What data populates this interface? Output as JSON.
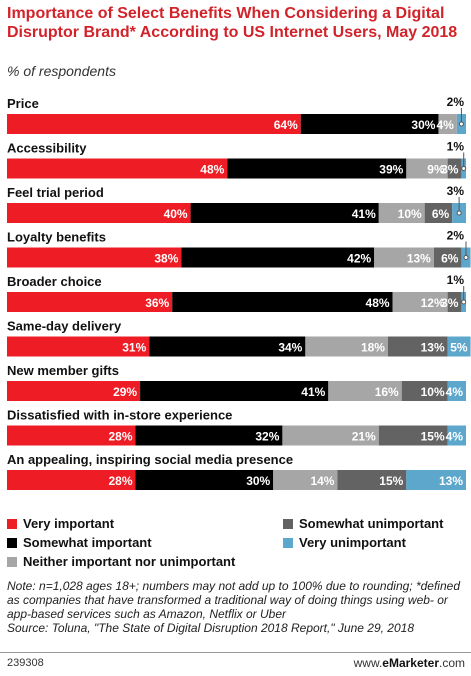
{
  "chart_data": {
    "type": "bar",
    "orientation": "horizontal",
    "stacked": true,
    "title": "Importance of Select Benefits When Considering a Digital Disruptor Brand* According to US Internet Users, May 2018",
    "subtitle": "% of respondents",
    "categories": [
      "Price",
      "Accessibility",
      "Feel trial period",
      "Loyalty benefits",
      "Broader choice",
      "Same-day delivery",
      "New member gifts",
      "Dissatisfied with in-store experience",
      "An appealing, inspiring social media presence"
    ],
    "series": [
      {
        "name": "Very important",
        "color": "#ee1c25",
        "values": [
          64,
          48,
          40,
          38,
          36,
          31,
          29,
          28,
          28
        ]
      },
      {
        "name": "Somewhat important",
        "color": "#000000",
        "values": [
          30,
          39,
          41,
          42,
          48,
          34,
          41,
          32,
          30
        ]
      },
      {
        "name": "Neither important nor unimportant",
        "color": "#a6a6a6",
        "values": [
          4,
          9,
          10,
          13,
          12,
          18,
          16,
          21,
          14
        ]
      },
      {
        "name": "Somewhat unimportant",
        "color": "#636363",
        "values": [
          0,
          3,
          6,
          6,
          3,
          13,
          10,
          15,
          15
        ]
      },
      {
        "name": "Very unimportant",
        "color": "#5ea7cc",
        "values": [
          2,
          1,
          3,
          2,
          1,
          5,
          4,
          4,
          13
        ]
      }
    ],
    "xlim": [
      0,
      100
    ],
    "legend_position": "bottom"
  },
  "note": "Note: n=1,028 ages 18+; numbers may not add up to 100% due to rounding; *defined as companies that have transformed a traditional way of doing things using web- or app-based services such as Amazon, Netflix or Uber",
  "source": "Source: Toluna, \"The State of Digital Disruption 2018 Report,\" June 29, 2018",
  "footer": {
    "id": "239308",
    "brand_prefix": "www.",
    "brand_bold": "eMarketer",
    "brand_suffix": ".com"
  }
}
